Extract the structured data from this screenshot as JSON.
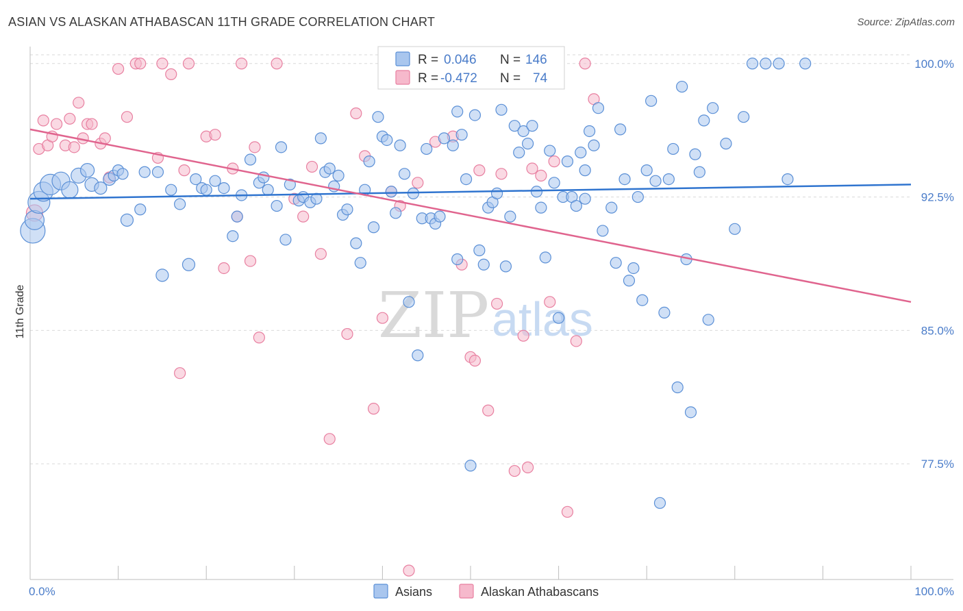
{
  "title": "ASIAN VS ALASKAN ATHABASCAN 11TH GRADE CORRELATION CHART",
  "source": "Source: ZipAtlas.com",
  "watermark": {
    "zip": "ZIP",
    "atlas": "atlas"
  },
  "colors": {
    "blue_fill": "#a9c6ee",
    "blue_stroke": "#5a8fd6",
    "blue_line": "#2f74cf",
    "pink_fill": "#f6b9cc",
    "pink_stroke": "#e87fa0",
    "pink_line": "#e0648e",
    "label_blue": "#4a7cc9"
  },
  "legend": {
    "rows": [
      {
        "r_label": "R =",
        "r_value": "0.046",
        "n_label": "N =",
        "n_value": "146"
      },
      {
        "r_label": "R =",
        "r_value": "-0.472",
        "n_label": "N =",
        "n_value": "74"
      }
    ]
  },
  "chart_data": {
    "type": "scatter",
    "title": "ASIAN VS ALASKAN ATHABASCAN 11TH GRADE CORRELATION CHART",
    "xlabel": "",
    "ylabel": "11th Grade",
    "xlim": [
      0,
      100
    ],
    "ylim": [
      71.0,
      100.8
    ],
    "x_tick_labels": [
      "0.0%",
      "100.0%"
    ],
    "y_ticks": [
      77.5,
      85.0,
      92.5,
      100.0
    ],
    "y_tick_labels": [
      "77.5%",
      "85.0%",
      "92.5%",
      "100.0%"
    ],
    "grid": true,
    "legend_position": "top-center",
    "series": [
      {
        "name": "Asians",
        "r": 0.046,
        "n": 146,
        "trend": {
          "x": [
            0,
            100
          ],
          "y": [
            92.4,
            93.2
          ]
        },
        "points": [
          [
            0.3,
            90.6,
            18
          ],
          [
            0.5,
            91.2,
            14
          ],
          [
            1,
            92.2,
            16
          ],
          [
            1.5,
            92.8,
            14
          ],
          [
            2.3,
            93.2,
            15
          ],
          [
            3.5,
            93.4,
            13
          ],
          [
            4.5,
            92.9,
            12
          ],
          [
            5.5,
            93.7,
            11
          ],
          [
            6.5,
            94.0,
            10
          ],
          [
            7,
            93.2,
            10
          ],
          [
            8,
            93.0,
            9
          ],
          [
            9,
            93.5,
            9
          ],
          [
            9.5,
            93.7,
            8
          ],
          [
            10,
            94.0,
            8
          ],
          [
            10.5,
            93.8,
            8
          ],
          [
            11,
            91.2,
            9
          ],
          [
            12.5,
            91.8,
            8
          ],
          [
            13,
            93.9,
            8
          ],
          [
            14.5,
            93.9,
            8
          ],
          [
            15,
            88.1,
            9
          ],
          [
            16,
            92.9,
            8
          ],
          [
            17,
            92.1,
            8
          ],
          [
            18,
            88.7,
            9
          ],
          [
            18.8,
            93.5,
            8
          ],
          [
            19.5,
            93.0,
            8
          ],
          [
            20,
            92.9,
            8
          ],
          [
            21,
            93.4,
            8
          ],
          [
            22,
            93.0,
            8
          ],
          [
            23,
            90.3,
            8
          ],
          [
            23.5,
            91.4,
            8
          ],
          [
            24,
            92.6,
            8
          ],
          [
            25,
            94.6,
            8
          ],
          [
            26,
            93.3,
            8
          ],
          [
            26.5,
            93.6,
            8
          ],
          [
            27,
            92.9,
            8
          ],
          [
            28,
            92.0,
            8
          ],
          [
            28.5,
            95.3,
            8
          ],
          [
            29,
            90.1,
            8
          ],
          [
            29.5,
            93.2,
            8
          ],
          [
            30.5,
            92.3,
            8
          ],
          [
            31,
            92.5,
            8
          ],
          [
            31.8,
            92.2,
            8
          ],
          [
            32.5,
            92.4,
            8
          ],
          [
            33,
            95.8,
            8
          ],
          [
            33.5,
            93.9,
            8
          ],
          [
            34,
            94.1,
            8
          ],
          [
            34.5,
            93.1,
            8
          ],
          [
            35,
            93.7,
            8
          ],
          [
            35.5,
            91.5,
            8
          ],
          [
            36,
            91.8,
            8
          ],
          [
            37,
            89.9,
            8
          ],
          [
            37.5,
            88.8,
            8
          ],
          [
            38,
            92.9,
            8
          ],
          [
            38.5,
            94.5,
            8
          ],
          [
            39,
            90.8,
            8
          ],
          [
            39.5,
            97.0,
            8
          ],
          [
            40,
            95.9,
            8
          ],
          [
            40.5,
            95.7,
            8
          ],
          [
            41,
            92.8,
            8
          ],
          [
            41.5,
            91.6,
            8
          ],
          [
            42,
            95.4,
            8
          ],
          [
            42.5,
            93.8,
            8
          ],
          [
            43,
            86.6,
            8
          ],
          [
            43.5,
            92.7,
            8
          ],
          [
            44,
            83.6,
            8
          ],
          [
            44.5,
            91.3,
            8
          ],
          [
            45,
            95.2,
            8
          ],
          [
            45.5,
            91.3,
            8
          ],
          [
            46,
            91.0,
            8
          ],
          [
            46.5,
            91.4,
            8
          ],
          [
            47,
            95.8,
            8
          ],
          [
            48,
            95.4,
            8
          ],
          [
            48.5,
            97.3,
            8
          ],
          [
            49,
            96.0,
            8
          ],
          [
            49.5,
            93.5,
            8
          ],
          [
            50,
            77.4,
            8
          ],
          [
            50.5,
            97.1,
            8
          ],
          [
            51,
            89.5,
            8
          ],
          [
            51.5,
            88.7,
            8
          ],
          [
            52,
            91.9,
            8
          ],
          [
            52.5,
            92.2,
            8
          ],
          [
            53,
            92.7,
            8
          ],
          [
            53.5,
            97.4,
            8
          ],
          [
            54,
            88.6,
            8
          ],
          [
            54.5,
            91.4,
            8
          ],
          [
            55,
            96.5,
            8
          ],
          [
            55.5,
            95.0,
            8
          ],
          [
            56,
            96.2,
            8
          ],
          [
            56.5,
            95.5,
            8
          ],
          [
            57,
            96.5,
            8
          ],
          [
            57.5,
            92.8,
            8
          ],
          [
            58,
            91.9,
            8
          ],
          [
            58.5,
            89.1,
            8
          ],
          [
            59,
            95.1,
            8
          ],
          [
            59.5,
            93.3,
            8
          ],
          [
            60,
            85.7,
            8
          ],
          [
            60.5,
            92.5,
            8
          ],
          [
            61,
            94.5,
            8
          ],
          [
            61.5,
            92.5,
            8
          ],
          [
            62,
            92.0,
            8
          ],
          [
            62.5,
            95.0,
            8
          ],
          [
            63,
            94.0,
            8
          ],
          [
            63.5,
            96.2,
            8
          ],
          [
            64,
            95.4,
            8
          ],
          [
            64.5,
            97.5,
            8
          ],
          [
            65,
            90.6,
            8
          ],
          [
            66,
            91.9,
            8
          ],
          [
            66.5,
            88.8,
            8
          ],
          [
            67,
            96.3,
            8
          ],
          [
            67.5,
            93.5,
            8
          ],
          [
            68,
            87.8,
            8
          ],
          [
            68.5,
            88.5,
            8
          ],
          [
            69,
            92.5,
            8
          ],
          [
            69.5,
            86.7,
            8
          ],
          [
            70,
            94.0,
            8
          ],
          [
            70.5,
            97.9,
            8
          ],
          [
            71,
            93.4,
            8
          ],
          [
            71.5,
            75.3,
            8
          ],
          [
            72,
            86.0,
            8
          ],
          [
            72.5,
            93.5,
            8
          ],
          [
            73,
            95.2,
            8
          ],
          [
            73.5,
            81.8,
            8
          ],
          [
            74,
            98.7,
            8
          ],
          [
            74.5,
            89.0,
            8
          ],
          [
            75,
            80.4,
            8
          ],
          [
            75.5,
            94.9,
            8
          ],
          [
            76,
            93.9,
            8
          ],
          [
            76.5,
            96.8,
            8
          ],
          [
            77,
            85.6,
            8
          ],
          [
            77.5,
            97.5,
            8
          ],
          [
            79,
            95.5,
            8
          ],
          [
            80,
            90.7,
            8
          ],
          [
            81,
            97.0,
            8
          ],
          [
            82,
            100.0,
            8
          ],
          [
            83.5,
            100.0,
            8
          ],
          [
            85,
            100.0,
            8
          ],
          [
            86,
            93.5,
            8
          ],
          [
            88,
            100.0,
            8
          ],
          [
            63,
            92.4,
            8
          ],
          [
            48.5,
            89.0,
            8
          ]
        ]
      },
      {
        "name": "Alaskan Athabascans",
        "r": -0.472,
        "n": 74,
        "trend": {
          "x": [
            0,
            100
          ],
          "y": [
            96.3,
            86.6
          ]
        },
        "points": [
          [
            0.5,
            91.6,
            12
          ],
          [
            1,
            95.2,
            8
          ],
          [
            1.5,
            96.8,
            8
          ],
          [
            2,
            95.4,
            8
          ],
          [
            2.5,
            95.9,
            8
          ],
          [
            3,
            96.6,
            8
          ],
          [
            4,
            95.4,
            8
          ],
          [
            4.5,
            96.9,
            8
          ],
          [
            5,
            95.3,
            8
          ],
          [
            5.5,
            97.8,
            8
          ],
          [
            6,
            95.8,
            8
          ],
          [
            6.5,
            96.6,
            8
          ],
          [
            7,
            96.6,
            8
          ],
          [
            8,
            95.5,
            8
          ],
          [
            8.5,
            95.8,
            8
          ],
          [
            9,
            93.6,
            8
          ],
          [
            10,
            99.7,
            8
          ],
          [
            11,
            97.0,
            8
          ],
          [
            12,
            100.0,
            8
          ],
          [
            12.5,
            100.0,
            8
          ],
          [
            14.5,
            94.7,
            8
          ],
          [
            15,
            100.0,
            8
          ],
          [
            16,
            99.4,
            8
          ],
          [
            17,
            82.6,
            8
          ],
          [
            17.5,
            94.0,
            8
          ],
          [
            18,
            100.0,
            8
          ],
          [
            20,
            95.9,
            8
          ],
          [
            21,
            96.0,
            8
          ],
          [
            22,
            88.5,
            8
          ],
          [
            23,
            94.1,
            8
          ],
          [
            23.5,
            91.4,
            8
          ],
          [
            24,
            100.0,
            8
          ],
          [
            25,
            88.9,
            8
          ],
          [
            25.5,
            95.3,
            8
          ],
          [
            26,
            84.6,
            8
          ],
          [
            28,
            100.0,
            8
          ],
          [
            30,
            92.4,
            8
          ],
          [
            31,
            91.4,
            8
          ],
          [
            32,
            94.2,
            8
          ],
          [
            33,
            89.3,
            8
          ],
          [
            34,
            78.9,
            8
          ],
          [
            36,
            84.8,
            8
          ],
          [
            37,
            97.2,
            8
          ],
          [
            38,
            94.8,
            8
          ],
          [
            39,
            80.6,
            8
          ],
          [
            40,
            85.7,
            8
          ],
          [
            41,
            92.8,
            8
          ],
          [
            42,
            92.0,
            8
          ],
          [
            43,
            71.5,
            8
          ],
          [
            44,
            93.3,
            8
          ],
          [
            45,
            100.0,
            8
          ],
          [
            46,
            95.6,
            8
          ],
          [
            47,
            100.0,
            8
          ],
          [
            47.5,
            100.0,
            8
          ],
          [
            48,
            95.9,
            8
          ],
          [
            49,
            88.7,
            8
          ],
          [
            50,
            83.5,
            8
          ],
          [
            50.5,
            83.3,
            8
          ],
          [
            51,
            94.0,
            8
          ],
          [
            52,
            80.5,
            8
          ],
          [
            53,
            86.5,
            8
          ],
          [
            53.5,
            93.8,
            8
          ],
          [
            55,
            77.1,
            8
          ],
          [
            56,
            84.7,
            8
          ],
          [
            56.5,
            77.3,
            8
          ],
          [
            57,
            94.1,
            8
          ],
          [
            58,
            93.7,
            8
          ],
          [
            59,
            86.6,
            8
          ],
          [
            59.5,
            94.5,
            8
          ],
          [
            61,
            74.8,
            8
          ],
          [
            62,
            84.4,
            8
          ],
          [
            63,
            100.0,
            8
          ],
          [
            64,
            98.0,
            8
          ],
          [
            60,
            100.0,
            8
          ]
        ]
      }
    ]
  }
}
